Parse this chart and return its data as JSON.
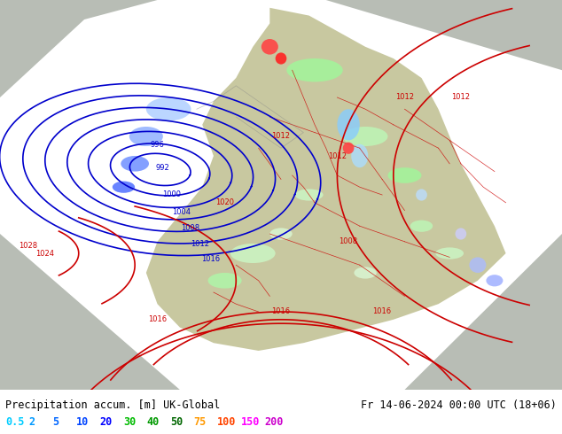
{
  "title_left": "Precipitation accum. [m] UK-Global",
  "title_right": "Fr 14-06-2024 00:00 UTC (18+06)",
  "legend_labels": [
    "0.5",
    "2",
    "5",
    "10",
    "20",
    "30",
    "40",
    "50",
    "75",
    "100",
    "150",
    "200"
  ],
  "legend_colors": [
    "#99ffff",
    "#00ffff",
    "#00ccff",
    "#0099ff",
    "#0066ff",
    "#00ff00",
    "#00cc00",
    "#009900",
    "#ff9900",
    "#ff6600",
    "#ff00ff",
    "#cc00cc"
  ],
  "bg_map_color": "#c8c8a0",
  "bg_sea_color": "#b0b8b0",
  "model_area_color": "#ffffff",
  "fig_bg": "#ffffff",
  "bottom_strip_color": "#d8d8d8",
  "text_color_left": "#000000",
  "text_color_right": "#000000",
  "figsize": [
    6.34,
    4.9
  ],
  "dpi": 100
}
